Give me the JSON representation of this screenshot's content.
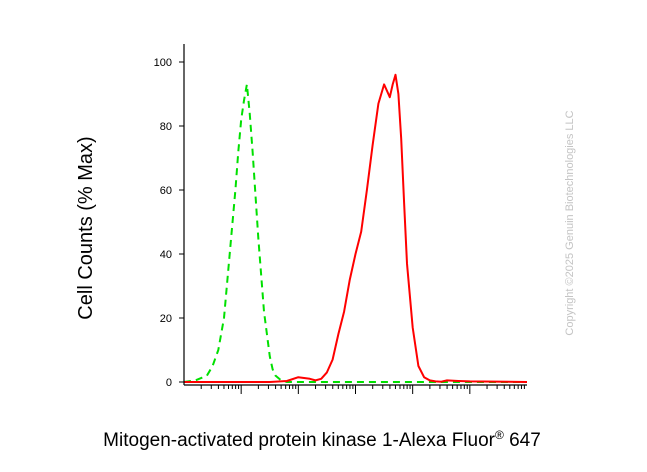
{
  "chart_data": {
    "type": "line",
    "title": "",
    "xlabel": "Mitogen-activated protein kinase 1-Alexa Fluor",
    "xlabel_sup": "®",
    "xlabel_suffix": " 647",
    "ylabel": "Cell Counts (% Max)",
    "x_scale": "log",
    "xlim": [
      -1,
      5
    ],
    "ylim": [
      0,
      100
    ],
    "y_ticks": [
      {
        "value": 0,
        "label": "0"
      },
      {
        "value": 20,
        "label": "20"
      },
      {
        "value": 40,
        "label": "40"
      },
      {
        "value": 60,
        "label": "60"
      },
      {
        "value": 80,
        "label": "80"
      },
      {
        "value": 100,
        "label": "100"
      }
    ],
    "x_decades": [
      0,
      1,
      2,
      3,
      4
    ],
    "grid": false,
    "series": [
      {
        "color": "#00e000",
        "dash": "dashed",
        "x": [
          -1.0,
          -0.8,
          -0.6,
          -0.5,
          -0.4,
          -0.3,
          -0.2,
          -0.1,
          -0.05,
          0.0,
          0.05,
          0.1,
          0.15,
          0.2,
          0.3,
          0.4,
          0.5,
          0.55,
          0.6,
          0.7,
          0.8,
          1.0,
          1.5,
          2.0,
          3.0,
          4.0,
          5.0
        ],
        "y": [
          0,
          0.5,
          2,
          5,
          10,
          20,
          40,
          60,
          72,
          82,
          88,
          93,
          84,
          72,
          45,
          22,
          8,
          4,
          2,
          0.5,
          0,
          0,
          0,
          0,
          0,
          0,
          0
        ]
      },
      {
        "color": "#ff0000",
        "dash": "solid",
        "x": [
          -1.0,
          0.5,
          0.8,
          1.0,
          1.2,
          1.3,
          1.4,
          1.5,
          1.6,
          1.7,
          1.8,
          1.9,
          2.0,
          2.1,
          2.2,
          2.3,
          2.4,
          2.5,
          2.6,
          2.65,
          2.7,
          2.75,
          2.8,
          2.85,
          2.9,
          3.0,
          3.1,
          3.2,
          3.3,
          3.4,
          3.5,
          3.6,
          3.8,
          4.0,
          5.0
        ],
        "y": [
          0,
          0,
          0.3,
          1.5,
          1.0,
          0.5,
          1.0,
          3,
          7,
          15,
          22,
          32,
          40,
          47,
          60,
          74,
          87,
          93,
          89,
          93,
          96,
          90,
          76,
          56,
          37,
          17,
          5,
          1.5,
          0.5,
          0.2,
          0.1,
          0.5,
          0.3,
          0.2,
          0
        ]
      }
    ]
  },
  "watermark": "Copyright ©2025 Genuin Biotechnologies LLC"
}
